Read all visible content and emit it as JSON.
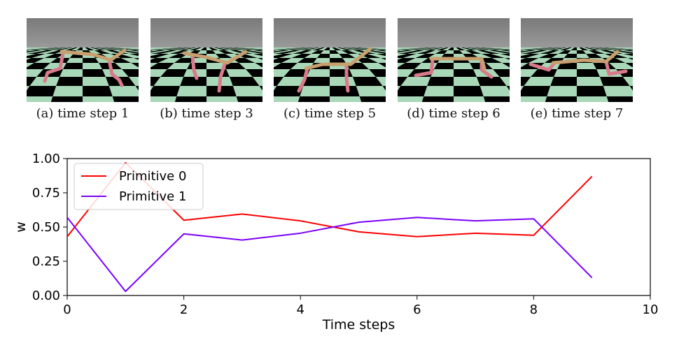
{
  "frames": [
    {
      "caption": "(a) time step 1"
    },
    {
      "caption": "(b) time step 3"
    },
    {
      "caption": "(c) time step 5"
    },
    {
      "caption": "(d) time step 6"
    },
    {
      "caption": "(e) time step 7"
    }
  ],
  "colors": {
    "sky_top": "#7a7a7a",
    "sky_bottom": "#9a9a9a",
    "floor_light": "#a8d8b8",
    "floor_dark": "#000000",
    "torso": "#c8a070",
    "legs": "#d87a8a"
  },
  "chart_data": {
    "type": "line",
    "xlabel": "Time steps",
    "ylabel": "w",
    "xlim": [
      0,
      10
    ],
    "ylim": [
      0,
      1
    ],
    "xticks": [
      "0",
      "2",
      "4",
      "6",
      "8",
      "10"
    ],
    "yticks": [
      "0.00",
      "0.25",
      "0.50",
      "0.75",
      "1.00"
    ],
    "legend_position": "top-left",
    "x": [
      0,
      1,
      2,
      3,
      4,
      5,
      6,
      7,
      8,
      9
    ],
    "series": [
      {
        "name": "Primitive 0",
        "color": "#ff0000",
        "values": [
          0.43,
          0.97,
          0.55,
          0.595,
          0.545,
          0.465,
          0.43,
          0.455,
          0.44,
          0.87
        ]
      },
      {
        "name": "Primitive 1",
        "color": "#7b00ff",
        "values": [
          0.57,
          0.03,
          0.45,
          0.405,
          0.455,
          0.535,
          0.57,
          0.545,
          0.56,
          0.13
        ]
      }
    ]
  }
}
